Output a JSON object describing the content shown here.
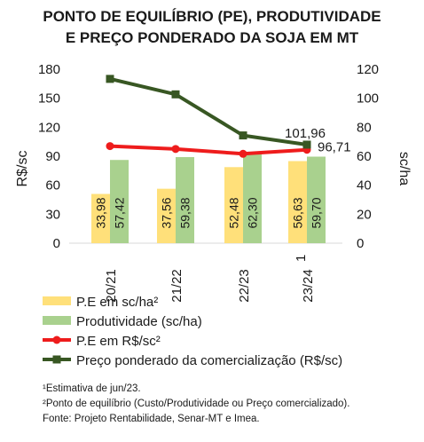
{
  "chart_data": {
    "type": "bar",
    "title_lines": [
      "PONTO DE EQUILÍBRIO (PE), PRODUTIVIDADE",
      "E PREÇO PONDERADO DA SOJA EM MT"
    ],
    "categories": [
      "20/21",
      "21/22",
      "22/23",
      "23/24"
    ],
    "category_superscripts": [
      "",
      "",
      "",
      "1"
    ],
    "y_left": {
      "label": "R$/sc",
      "ticks": [
        "0",
        "30",
        "60",
        "90",
        "120",
        "150",
        "180"
      ],
      "range": [
        0,
        180
      ]
    },
    "y_right": {
      "label": "sc/ha",
      "ticks": [
        "0",
        "20",
        "40",
        "60",
        "80",
        "100",
        "120"
      ],
      "range": [
        0,
        120
      ]
    },
    "series": [
      {
        "name": "P.E em sc/ha²",
        "kind": "bar",
        "axis": "right",
        "color": "#ffe07a",
        "values": [
          33.98,
          37.56,
          52.48,
          56.63
        ],
        "labels": [
          "33,98",
          "37,56",
          "52,48",
          "56,63"
        ]
      },
      {
        "name": "Produtividade (sc/ha)",
        "kind": "bar",
        "axis": "right",
        "color": "#a9d18e",
        "values": [
          57.42,
          59.38,
          62.3,
          59.7
        ],
        "labels": [
          "57,42",
          "59,38",
          "62,30",
          "59,70"
        ]
      },
      {
        "name": "P.E em R$/sc²",
        "kind": "line",
        "axis": "left",
        "color": "#ee1c1c",
        "values": [
          100.5,
          97.5,
          92.5,
          96.71
        ],
        "point_labels": [
          "",
          "",
          "",
          "96,71"
        ]
      },
      {
        "name": "Preço ponderado da comercialização (R$/sc)",
        "kind": "line",
        "axis": "left",
        "color": "#385723",
        "values": [
          170,
          154,
          111.5,
          101.96
        ],
        "point_labels": [
          "",
          "",
          "",
          "101,96"
        ]
      }
    ],
    "footnotes": [
      "¹Estimativa de jun/23.",
      "²Ponto de equilíbrio (Custo/Produtividade ou Preço comercializado).",
      "Fonte: Projeto Rentabilidade, Senar-MT e Imea."
    ]
  }
}
